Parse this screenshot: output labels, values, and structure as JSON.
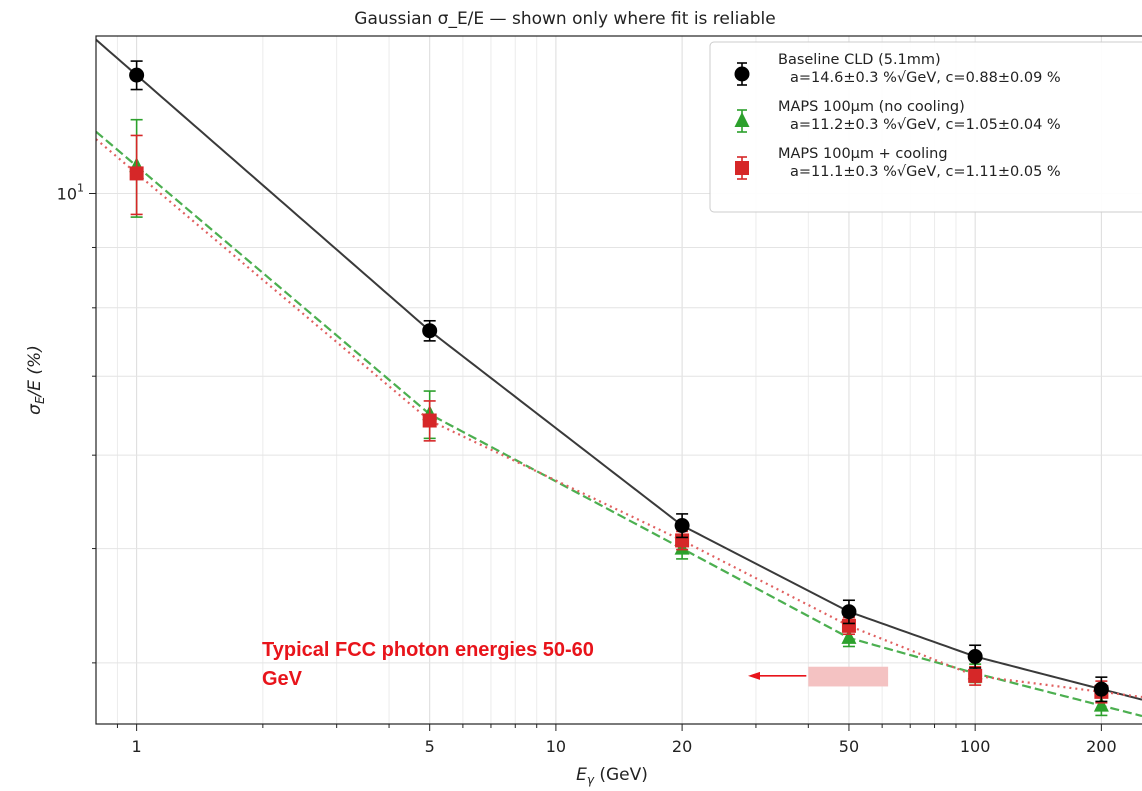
{
  "chart_data": {
    "type": "scatter",
    "title": "Gaussian σ_E/E  — shown only where fit is reliable",
    "xlabel": {
      "main": "E",
      "sub": "γ",
      "suffix": " (GeV)"
    },
    "ylabel": {
      "main": "σ",
      "sub": "E",
      "suffix": "/E  (%)"
    },
    "xscale": "log",
    "yscale": "log",
    "xlim": [
      0.8,
      250
    ],
    "ylim": [
      3.55,
      13.6
    ],
    "x_ticks": [
      1,
      5,
      10,
      20,
      50,
      100,
      200
    ],
    "x_tick_labels": [
      "1",
      "5",
      "10",
      "20",
      "50",
      "100",
      "200"
    ],
    "y_ticks": [
      10
    ],
    "y_tick_labels": [
      {
        "base": "10",
        "exp": "1"
      }
    ],
    "grid": true,
    "legend_position": "top-right",
    "series": [
      {
        "name": "Baseline CLD (5.1mm)",
        "fit_label": "a=14.6±0.3 %√GeV,  c=0.88±0.09 %",
        "marker": "circle",
        "color": "#000000",
        "line_color": "#3a3a3a",
        "line_style": "solid",
        "fit": {
          "a": 14.6,
          "c": 0.88
        },
        "points": [
          {
            "x": 1,
            "y": 12.6,
            "yerr": 0.35
          },
          {
            "x": 5,
            "y": 7.65,
            "yerr": 0.15
          },
          {
            "x": 20,
            "y": 5.23,
            "yerr": 0.12
          },
          {
            "x": 50,
            "y": 4.42,
            "yerr": 0.1
          },
          {
            "x": 100,
            "y": 4.05,
            "yerr": 0.09
          },
          {
            "x": 200,
            "y": 3.8,
            "yerr": 0.09
          }
        ]
      },
      {
        "name": "MAPS 100µm (no cooling)",
        "fit_label": "a=11.2±0.3 %√GeV,  c=1.05±0.04 %",
        "marker": "triangle",
        "color": "#2ca02c",
        "line_color": "#4caf50",
        "line_style": "dashed",
        "fit": {
          "a": 11.2,
          "c": 1.05
        },
        "points": [
          {
            "x": 1,
            "y": 10.55,
            "yerr": 1.0
          },
          {
            "x": 5,
            "y": 6.5,
            "yerr": 0.3
          },
          {
            "x": 20,
            "y": 5.0,
            "yerr": 0.1
          },
          {
            "x": 50,
            "y": 4.2,
            "yerr": 0.07
          },
          {
            "x": 100,
            "y": 3.92,
            "yerr": 0.07
          },
          {
            "x": 200,
            "y": 3.68,
            "yerr": 0.07
          }
        ]
      },
      {
        "name": "MAPS 100µm + cooling",
        "fit_label": "a=11.1±0.3 %√GeV,  c=1.11±0.05 %",
        "marker": "square",
        "color": "#d62728",
        "line_color": "#e06060",
        "line_style": "dotted",
        "fit": {
          "a": 11.1,
          "c": 1.11
        },
        "points": [
          {
            "x": 1,
            "y": 10.4,
            "yerr": 0.8
          },
          {
            "x": 5,
            "y": 6.42,
            "yerr": 0.25
          },
          {
            "x": 20,
            "y": 5.08,
            "yerr": 0.09
          },
          {
            "x": 50,
            "y": 4.3,
            "yerr": 0.07
          },
          {
            "x": 100,
            "y": 3.9,
            "yerr": 0.07
          },
          {
            "x": 200,
            "y": 3.78,
            "yerr": 0.08
          }
        ]
      }
    ],
    "annotation": {
      "lines": [
        "Typical FCC photon energies 50-60",
        "GeV"
      ],
      "color": "#e8141b",
      "band": {
        "x_range": [
          40,
          62
        ],
        "y_range": [
          3.82,
          3.97
        ],
        "color": "#f4c2c2"
      },
      "arrow_to": {
        "x": 40,
        "y": 3.9
      }
    }
  }
}
